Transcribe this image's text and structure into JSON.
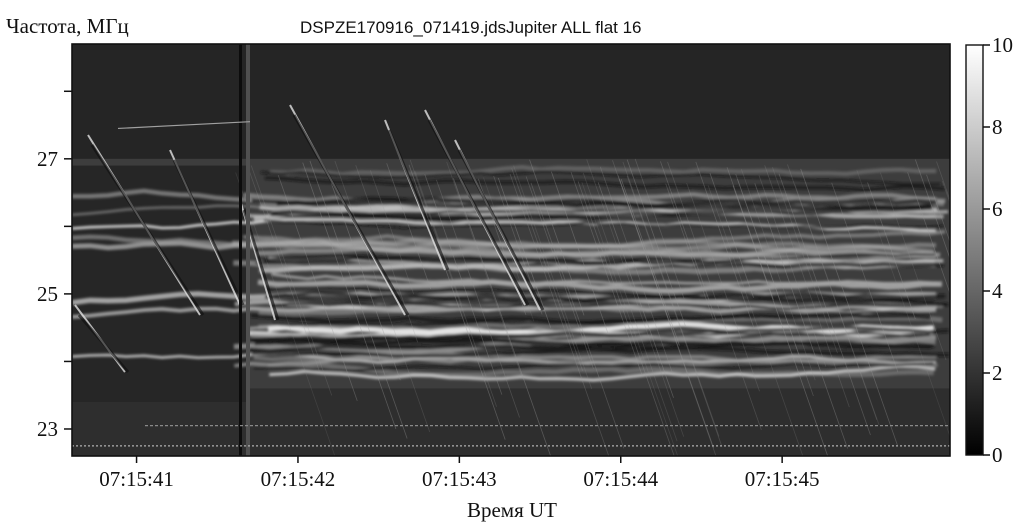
{
  "chart_data": {
    "type": "heatmap",
    "title": "DSPZE170916_071419.jdsJupiter ALL flat 16",
    "xlabel": "Время UT",
    "ylabel": "Частота, МГц",
    "x_ticks": [
      "07:15:41",
      "07:15:42",
      "07:15:43",
      "07:15:44",
      "07:15:45"
    ],
    "x_tick_seconds": [
      1.0,
      2.0,
      3.0,
      4.0,
      5.0
    ],
    "xlim_seconds": [
      0.6,
      6.04
    ],
    "y_ticks": [
      23,
      25,
      27
    ],
    "y_minor_ticks": [
      24,
      26,
      28
    ],
    "ylim": [
      22.6,
      28.7
    ],
    "colorbar": {
      "ticks": [
        "0",
        "2",
        "4",
        "6",
        "8",
        "10"
      ],
      "tick_values": [
        0,
        2,
        4,
        6,
        8,
        10
      ],
      "range": [
        0,
        10
      ],
      "colormap": "gray"
    },
    "colors": {
      "background": "#ffffff",
      "text": "#111111",
      "low": "#0a0a0a",
      "high": "#f0f0f0"
    }
  }
}
